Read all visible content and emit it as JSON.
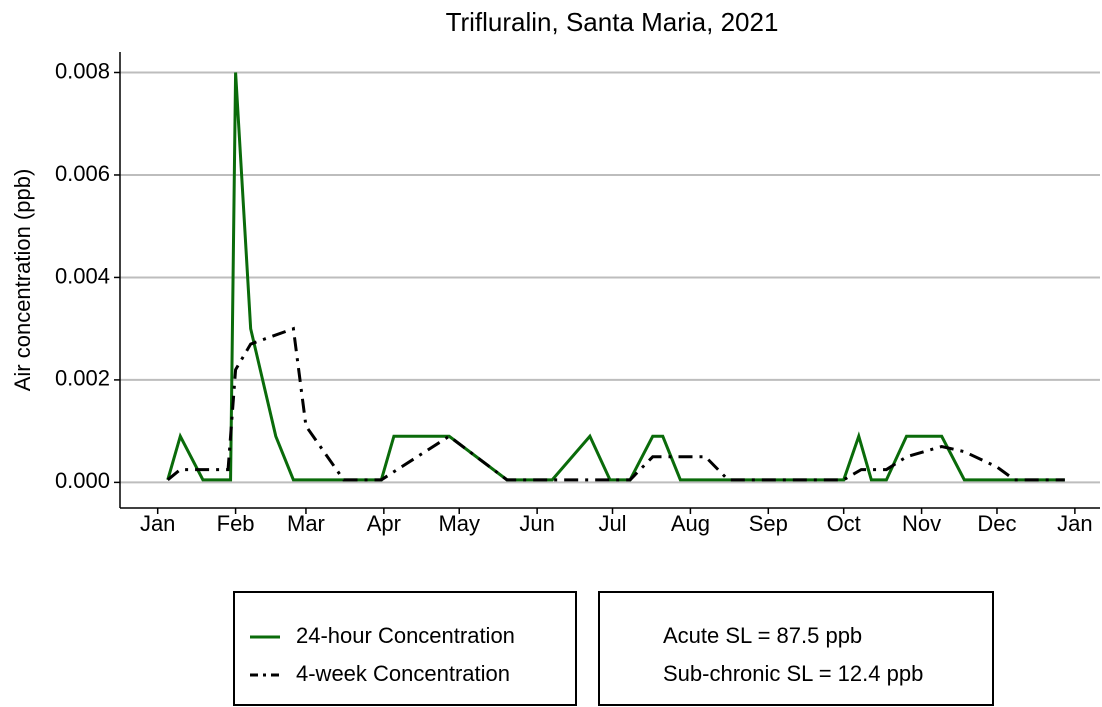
{
  "chart_data": {
    "type": "line",
    "title": "Trifluralin, Santa Maria, 2021",
    "y_label": "Air concentration (ppb)",
    "xlim": [
      -15,
      375
    ],
    "xticks": [
      {
        "value": 0,
        "label": "Jan"
      },
      {
        "value": 31,
        "label": "Feb"
      },
      {
        "value": 59,
        "label": "Mar"
      },
      {
        "value": 90,
        "label": "Apr"
      },
      {
        "value": 120,
        "label": "May"
      },
      {
        "value": 151,
        "label": "Jun"
      },
      {
        "value": 181,
        "label": "Jul"
      },
      {
        "value": 212,
        "label": "Aug"
      },
      {
        "value": 243,
        "label": "Sep"
      },
      {
        "value": 273,
        "label": "Oct"
      },
      {
        "value": 304,
        "label": "Nov"
      },
      {
        "value": 334,
        "label": "Dec"
      },
      {
        "value": 365,
        "label": "Jan"
      }
    ],
    "ylim": [
      -0.0005,
      0.0084
    ],
    "yticks": [
      {
        "value": 0,
        "label": "0.000"
      },
      {
        "value": 0.002,
        "label": "0.002"
      },
      {
        "value": 0.004,
        "label": "0.004"
      },
      {
        "value": 0.006,
        "label": "0.006"
      },
      {
        "value": 0.008,
        "label": "0.008"
      }
    ],
    "grid": true,
    "legend": "bottom",
    "series": [
      {
        "name": "24-hour Concentration",
        "color": "#0a6b0a",
        "style": "solid",
        "x": [
          4,
          9,
          18,
          29,
          31,
          37,
          47,
          54,
          89,
          94,
          116,
          139,
          157,
          172,
          180,
          188,
          197,
          201,
          208,
          273,
          279,
          284,
          290,
          298,
          312,
          321,
          361
        ],
        "values": [
          5e-05,
          0.0009,
          5e-05,
          5e-05,
          0.008,
          0.003,
          0.0009,
          5e-05,
          5e-05,
          0.0009,
          0.0009,
          5e-05,
          5e-05,
          0.0009,
          5e-05,
          5e-05,
          0.0009,
          0.0009,
          5e-05,
          5e-05,
          0.0009,
          5e-05,
          5e-05,
          0.0009,
          0.0009,
          5e-05,
          5e-05
        ]
      },
      {
        "name": "4-week Concentration",
        "color": "#000000",
        "style": "dashdot",
        "x": [
          4,
          9,
          28,
          31,
          37,
          54,
          59,
          74,
          89,
          116,
          139,
          188,
          197,
          218,
          227,
          273,
          280,
          290,
          298,
          312,
          321,
          334,
          341,
          361
        ],
        "values": [
          5e-05,
          0.00025,
          0.00025,
          0.0022,
          0.0027,
          0.003,
          0.0011,
          5e-05,
          5e-05,
          0.0009,
          5e-05,
          5e-05,
          0.0005,
          0.0005,
          5e-05,
          5e-05,
          0.00025,
          0.00025,
          0.0005,
          0.0007,
          0.0006,
          0.0003,
          5e-05,
          5e-05
        ]
      }
    ],
    "annotations": [
      "Acute SL = 87.5 ppb",
      "Sub-chronic SL = 12.4 ppb"
    ]
  }
}
